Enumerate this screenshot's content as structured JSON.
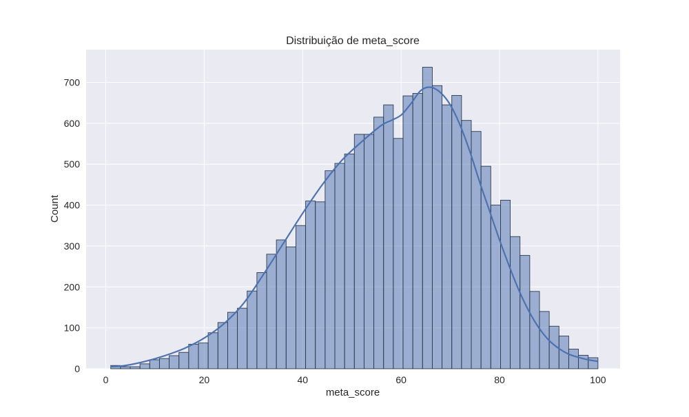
{
  "chart_data": {
    "type": "histogram",
    "title": "Distribuição de meta_score",
    "xlabel": "meta_score",
    "ylabel": "Count",
    "xlim": [
      -4,
      104.5
    ],
    "ylim": [
      0,
      780
    ],
    "xticks": [
      0,
      20,
      40,
      60,
      80,
      100
    ],
    "yticks": [
      0,
      100,
      200,
      300,
      400,
      500,
      600,
      700
    ],
    "grid": true,
    "style": "seaborn-darkgrid",
    "colors": {
      "background": "#eaeaf2",
      "grid": "#ffffff",
      "bar_fill": "#4c72b0",
      "bar_fill_opacity": 0.5,
      "bar_edge": "#2b3a4f",
      "kde_line": "#4c72b0"
    },
    "bin_edges": [
      1.0,
      2.98,
      4.96,
      6.94,
      8.92,
      10.9,
      12.88,
      14.86,
      16.84,
      18.82,
      20.8,
      22.78,
      24.76,
      26.74,
      28.72,
      30.7,
      32.68,
      34.66,
      36.64,
      38.62,
      40.6,
      42.58,
      44.56,
      46.54,
      48.52,
      50.5,
      52.48,
      54.46,
      56.44,
      58.42,
      60.4,
      62.38,
      64.36,
      66.34,
      68.32,
      70.3,
      72.28,
      74.26,
      76.24,
      78.22,
      80.2,
      82.18,
      84.16,
      86.14,
      88.12,
      90.1,
      92.08,
      94.06,
      96.04,
      98.02,
      100.0
    ],
    "counts": [
      8,
      5,
      5,
      12,
      22,
      25,
      32,
      40,
      60,
      63,
      88,
      113,
      138,
      148,
      190,
      235,
      280,
      315,
      298,
      350,
      410,
      408,
      484,
      502,
      525,
      573,
      573,
      615,
      645,
      563,
      667,
      673,
      737,
      692,
      645,
      668,
      607,
      580,
      495,
      400,
      412,
      323,
      277,
      189,
      140,
      104,
      80,
      48,
      33,
      27
    ],
    "kde": {
      "x": [
        1,
        4,
        8,
        12,
        16,
        20,
        24,
        28,
        32,
        36,
        40,
        44,
        48,
        52,
        56,
        58,
        60,
        62,
        64,
        66,
        68,
        70,
        72,
        74,
        76,
        78,
        80,
        82,
        84,
        86,
        88,
        90,
        92,
        94,
        96,
        98,
        100
      ],
      "y": [
        5,
        8,
        18,
        32,
        50,
        75,
        110,
        160,
        230,
        305,
        380,
        450,
        510,
        555,
        595,
        607,
        620,
        648,
        680,
        688,
        675,
        645,
        595,
        530,
        455,
        385,
        315,
        250,
        190,
        140,
        100,
        70,
        50,
        36,
        28,
        22,
        18
      ]
    }
  }
}
